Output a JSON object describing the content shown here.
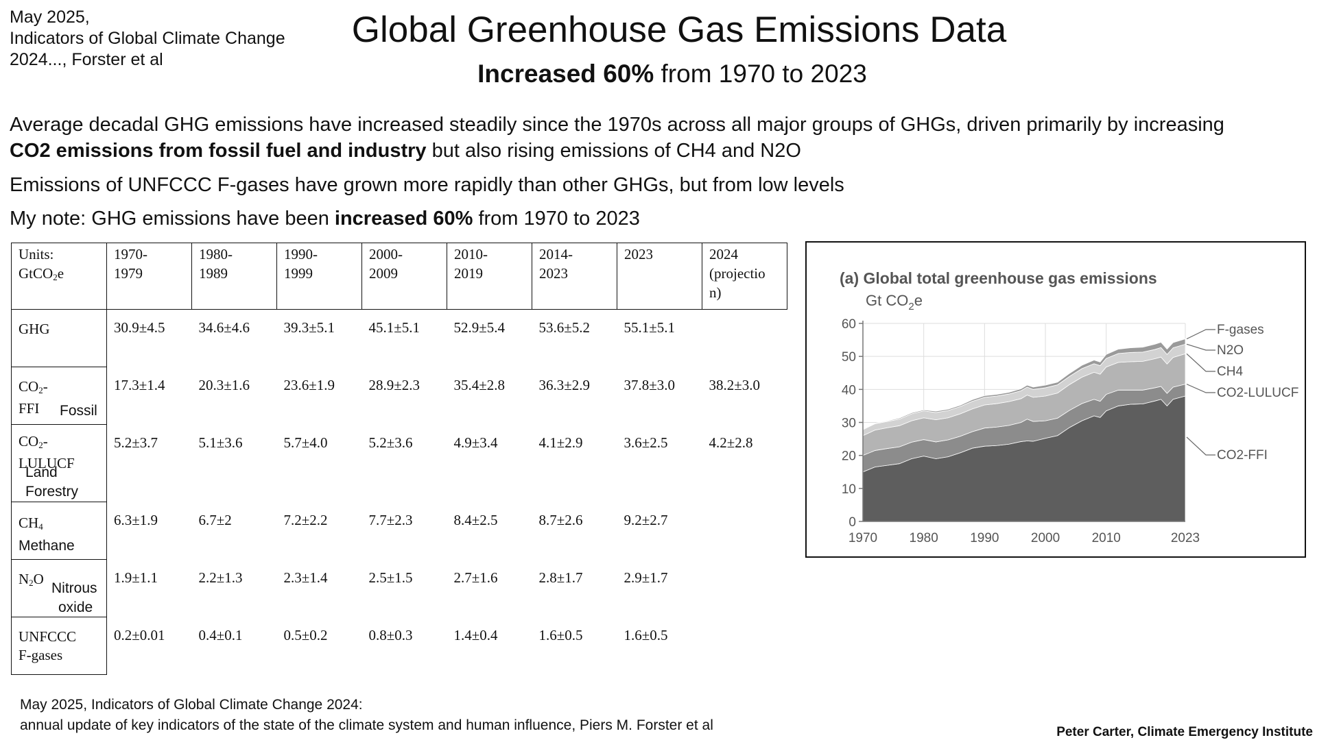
{
  "source_top": [
    "May 2025,",
    "Indicators of Global Climate Change",
    "2024..., Forster et al"
  ],
  "title": "Global Greenhouse Gas Emissions Data",
  "subtitle": {
    "bold": "Increased 60%",
    "rest": " from 1970 to 2023"
  },
  "para1": {
    "line1": "Average decadal GHG emissions have increased steadily since the 1970s across all major groups of GHGs, driven primarily by increasing",
    "bold": "CO2 emissions from fossil fuel and industry",
    "rest": " but also rising emissions of CH4 and N2O"
  },
  "para2": "Emissions of UNFCCC F-gases have grown more rapidly than other GHGs, but from low levels",
  "para3": {
    "pre": "My note: GHG emissions have been ",
    "bold": "increased 60%",
    "post": " from 1970 to 2023"
  },
  "table": {
    "units_line1": "Units:",
    "units_line2": "GtCO",
    "units_sub": "2",
    "units_line2_end": "e",
    "periods": [
      [
        "1970-",
        "1979"
      ],
      [
        "1980-",
        "1989"
      ],
      [
        "1990-",
        "1999"
      ],
      [
        "2000-",
        "2009"
      ],
      [
        "2010-",
        "2019"
      ],
      [
        "2014-",
        "2023"
      ],
      [
        "2023",
        ""
      ],
      [
        "2024",
        "(projectio",
        "n)"
      ]
    ],
    "rows": [
      {
        "label": "GHG",
        "note": "",
        "values": [
          "30.9±4.5",
          "34.6±4.6",
          "39.3±5.1",
          "45.1±5.1",
          "52.9±5.4",
          "53.6±5.2",
          "55.1±5.1",
          ""
        ]
      },
      {
        "label_pre": "CO",
        "label_sub": "2",
        "label_post": "-",
        "label2": "FFI",
        "note": "Fossil",
        "values": [
          "17.3±1.4",
          "20.3±1.6",
          "23.6±1.9",
          "28.9±2.3",
          "35.4±2.8",
          "36.3±2.9",
          "37.8±3.0",
          "38.2±3.0"
        ]
      },
      {
        "label_pre": "CO",
        "label_sub": "2",
        "label_post": "-",
        "label2": "LULUCF",
        "note": "Land",
        "note2": "Forestry",
        "values": [
          "5.2±3.7",
          "5.1±3.6",
          "5.7±4.0",
          "5.2±3.6",
          "4.9±3.4",
          "4.1±2.9",
          "3.6±2.5",
          "4.2±2.8"
        ]
      },
      {
        "label_pre": "CH",
        "label_sub": "4",
        "label_post": "",
        "note": "Methane",
        "values": [
          "6.3±1.9",
          "6.7±2",
          "7.2±2.2",
          "7.7±2.3",
          "8.4±2.5",
          "8.7±2.6",
          "9.2±2.7",
          ""
        ]
      },
      {
        "label_pre": "N",
        "label_sub": "2",
        "label_post": "O",
        "note": "Nitrous",
        "note2": "oxide",
        "values": [
          "1.9±1.1",
          "2.2±1.3",
          "2.3±1.4",
          "2.5±1.5",
          "2.7±1.6",
          "2.8±1.7",
          "2.9±1.7",
          ""
        ]
      },
      {
        "label": "UNFCCC",
        "label2": "F-gases",
        "note": "",
        "values": [
          "0.2±0.01",
          "0.4±0.1",
          "0.5±0.2",
          "0.8±0.3",
          "1.4±0.4",
          "1.6±0.5",
          "1.6±0.5",
          ""
        ]
      }
    ]
  },
  "chart_data": {
    "type": "area",
    "stacked": true,
    "title": "(a) Global total greenhouse gas emissions",
    "ylabel_pre": "Gt CO",
    "ylabel_sub": "2",
    "ylabel_post": "e",
    "ylim": [
      0,
      60
    ],
    "yticks": [
      0,
      10,
      20,
      30,
      40,
      50,
      60
    ],
    "xlim": [
      1970,
      2023
    ],
    "xticks": [
      1970,
      1980,
      1990,
      2000,
      2010,
      2023
    ],
    "grid": true,
    "legend": "right, leader lines",
    "x": [
      1970,
      1972,
      1974,
      1976,
      1978,
      1980,
      1982,
      1984,
      1986,
      1988,
      1990,
      1992,
      1994,
      1996,
      1997,
      1998,
      2000,
      2002,
      2004,
      2006,
      2008,
      2009,
      2010,
      2012,
      2014,
      2016,
      2018,
      2019,
      2020,
      2021,
      2023
    ],
    "series": [
      {
        "name": "CO2-FFI",
        "color": "#5e5e5e",
        "values": [
          15.0,
          16.5,
          17.0,
          17.5,
          19.0,
          19.8,
          19.0,
          19.6,
          20.8,
          22.2,
          22.8,
          23.0,
          23.4,
          24.2,
          24.4,
          24.3,
          25.2,
          26.0,
          28.5,
          30.5,
          32.0,
          31.5,
          33.5,
          35.0,
          35.5,
          35.6,
          36.5,
          37.0,
          35.0,
          37.0,
          38.0
        ]
      },
      {
        "name": "CO2-LULUCF",
        "color": "#8c8c8c",
        "values": [
          5.0,
          5.0,
          5.1,
          5.1,
          5.0,
          5.0,
          5.1,
          5.1,
          5.0,
          5.0,
          5.5,
          5.6,
          5.7,
          5.8,
          6.6,
          6.0,
          5.3,
          5.3,
          5.2,
          5.2,
          5.0,
          4.9,
          5.0,
          4.8,
          4.3,
          4.2,
          4.0,
          3.9,
          3.8,
          3.7,
          3.6
        ]
      },
      {
        "name": "CH4",
        "color": "#b4b4b4",
        "values": [
          6.0,
          6.2,
          6.3,
          6.4,
          6.5,
          6.6,
          6.7,
          6.7,
          6.8,
          6.9,
          7.0,
          7.1,
          7.2,
          7.2,
          7.3,
          7.3,
          7.5,
          7.6,
          7.8,
          8.0,
          8.2,
          8.2,
          8.3,
          8.4,
          8.6,
          8.7,
          8.8,
          8.9,
          8.9,
          9.0,
          9.2
        ]
      },
      {
        "name": "N2O",
        "color": "#d2d2d2",
        "values": [
          1.8,
          1.9,
          1.9,
          2.0,
          2.1,
          2.1,
          2.2,
          2.2,
          2.2,
          2.3,
          2.3,
          2.3,
          2.3,
          2.4,
          2.4,
          2.4,
          2.5,
          2.5,
          2.5,
          2.6,
          2.6,
          2.6,
          2.6,
          2.7,
          2.8,
          2.8,
          2.8,
          2.9,
          2.9,
          2.9,
          2.9
        ]
      },
      {
        "name": "F-gases",
        "color": "#9a9a9a",
        "values": [
          0.2,
          0.2,
          0.2,
          0.3,
          0.3,
          0.3,
          0.4,
          0.4,
          0.4,
          0.5,
          0.5,
          0.5,
          0.5,
          0.6,
          0.6,
          0.7,
          0.8,
          0.8,
          0.9,
          1.0,
          1.1,
          1.1,
          1.2,
          1.3,
          1.4,
          1.5,
          1.6,
          1.6,
          1.6,
          1.6,
          1.6
        ]
      }
    ]
  },
  "source_bottom": [
    "May 2025, Indicators of Global Climate Change 2024:",
    "annual update of key indicators of the state of the climate system and human influence,  Piers M. Forster et al"
  ],
  "credit": "Peter Carter, Climate Emergency Institute"
}
